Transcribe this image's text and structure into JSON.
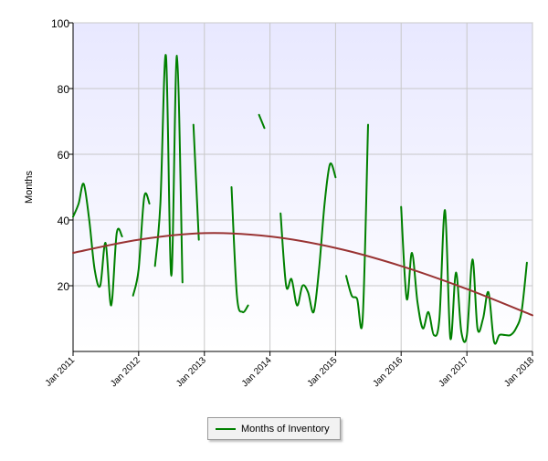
{
  "chart_data": {
    "type": "line",
    "title": "",
    "xlabel": "",
    "ylabel": "Months",
    "ylim": [
      0,
      100
    ],
    "xlim": [
      "2011-01-01",
      "2018-01-01"
    ],
    "yticks": [
      "20",
      "40",
      "60",
      "80",
      "100"
    ],
    "xticks": [
      {
        "date": "2011-01-01",
        "label": "Jan 2011"
      },
      {
        "date": "2012-01-01",
        "label": "Jan 2012"
      },
      {
        "date": "2013-01-01",
        "label": "Jan 2013"
      },
      {
        "date": "2014-01-01",
        "label": "Jan 2014"
      },
      {
        "date": "2015-01-01",
        "label": "Jan 2015"
      },
      {
        "date": "2016-01-01",
        "label": "Jan 2016"
      },
      {
        "date": "2017-01-01",
        "label": "Jan 2017"
      },
      {
        "date": "2018-01-01",
        "label": "Jan 2018"
      }
    ],
    "grid": true,
    "legend_position": "bottom-center",
    "series": [
      {
        "name": "Months of Inventory",
        "color": "#008000",
        "segments": [
          [
            [
              "2011-01-01",
              41
            ],
            [
              "2011-02-01",
              45
            ],
            [
              "2011-03-01",
              51
            ],
            [
              "2011-04-01",
              40
            ],
            [
              "2011-05-01",
              25
            ],
            [
              "2011-06-01",
              20
            ],
            [
              "2011-07-01",
              33
            ],
            [
              "2011-08-01",
              14
            ],
            [
              "2011-09-01",
              36
            ],
            [
              "2011-10-01",
              35
            ]
          ],
          [
            [
              "2011-12-01",
              17
            ],
            [
              "2012-01-01",
              25
            ],
            [
              "2012-02-01",
              47
            ],
            [
              "2012-03-01",
              45
            ]
          ],
          [
            [
              "2012-04-01",
              26
            ],
            [
              "2012-05-01",
              45
            ],
            [
              "2012-06-01",
              90
            ],
            [
              "2012-07-01",
              23
            ],
            [
              "2012-08-01",
              90
            ],
            [
              "2012-09-01",
              21
            ]
          ],
          [
            [
              "2012-11-01",
              69
            ],
            [
              "2012-12-01",
              34
            ]
          ],
          [
            [
              "2013-06-01",
              50
            ],
            [
              "2013-07-01",
              17
            ],
            [
              "2013-08-01",
              12
            ],
            [
              "2013-09-01",
              14
            ]
          ],
          [
            [
              "2013-11-01",
              72
            ],
            [
              "2013-12-01",
              68
            ]
          ],
          [
            [
              "2014-03-01",
              42
            ],
            [
              "2014-04-01",
              20
            ],
            [
              "2014-05-01",
              22
            ],
            [
              "2014-06-01",
              14
            ],
            [
              "2014-07-01",
              20
            ],
            [
              "2014-08-01",
              18
            ],
            [
              "2014-09-01",
              12
            ],
            [
              "2014-10-01",
              25
            ],
            [
              "2014-11-01",
              45
            ],
            [
              "2014-12-01",
              57
            ],
            [
              "2015-01-01",
              53
            ]
          ],
          [
            [
              "2015-03-01",
              23
            ],
            [
              "2015-04-01",
              17
            ],
            [
              "2015-05-01",
              16
            ],
            [
              "2015-06-01",
              10
            ],
            [
              "2015-07-01",
              69
            ]
          ],
          [
            [
              "2016-01-01",
              44
            ],
            [
              "2016-02-01",
              16
            ],
            [
              "2016-03-01",
              30
            ],
            [
              "2016-04-01",
              15
            ],
            [
              "2016-05-01",
              7
            ],
            [
              "2016-06-01",
              12
            ],
            [
              "2016-07-01",
              5
            ],
            [
              "2016-08-01",
              10
            ],
            [
              "2016-09-01",
              43
            ],
            [
              "2016-10-01",
              4
            ],
            [
              "2016-11-01",
              24
            ],
            [
              "2016-12-01",
              6
            ],
            [
              "2017-01-01",
              5
            ],
            [
              "2017-02-01",
              28
            ],
            [
              "2017-03-01",
              7
            ],
            [
              "2017-04-01",
              10
            ],
            [
              "2017-05-01",
              18
            ],
            [
              "2017-06-01",
              3
            ],
            [
              "2017-07-01",
              5
            ],
            [
              "2017-08-01",
              5
            ],
            [
              "2017-09-01",
              5
            ],
            [
              "2017-10-01",
              7
            ],
            [
              "2017-11-01",
              12
            ],
            [
              "2017-12-01",
              27
            ]
          ]
        ]
      },
      {
        "name": "",
        "color": "#993333",
        "style": "trend",
        "points": [
          [
            "2011-01-01",
            30
          ],
          [
            "2012-01-01",
            34
          ],
          [
            "2013-01-01",
            36
          ],
          [
            "2014-01-01",
            35
          ],
          [
            "2015-01-01",
            31.5
          ],
          [
            "2016-01-01",
            26
          ],
          [
            "2017-01-01",
            19
          ],
          [
            "2018-01-01",
            11
          ]
        ]
      }
    ]
  },
  "legend": {
    "label": "Months of Inventory"
  }
}
